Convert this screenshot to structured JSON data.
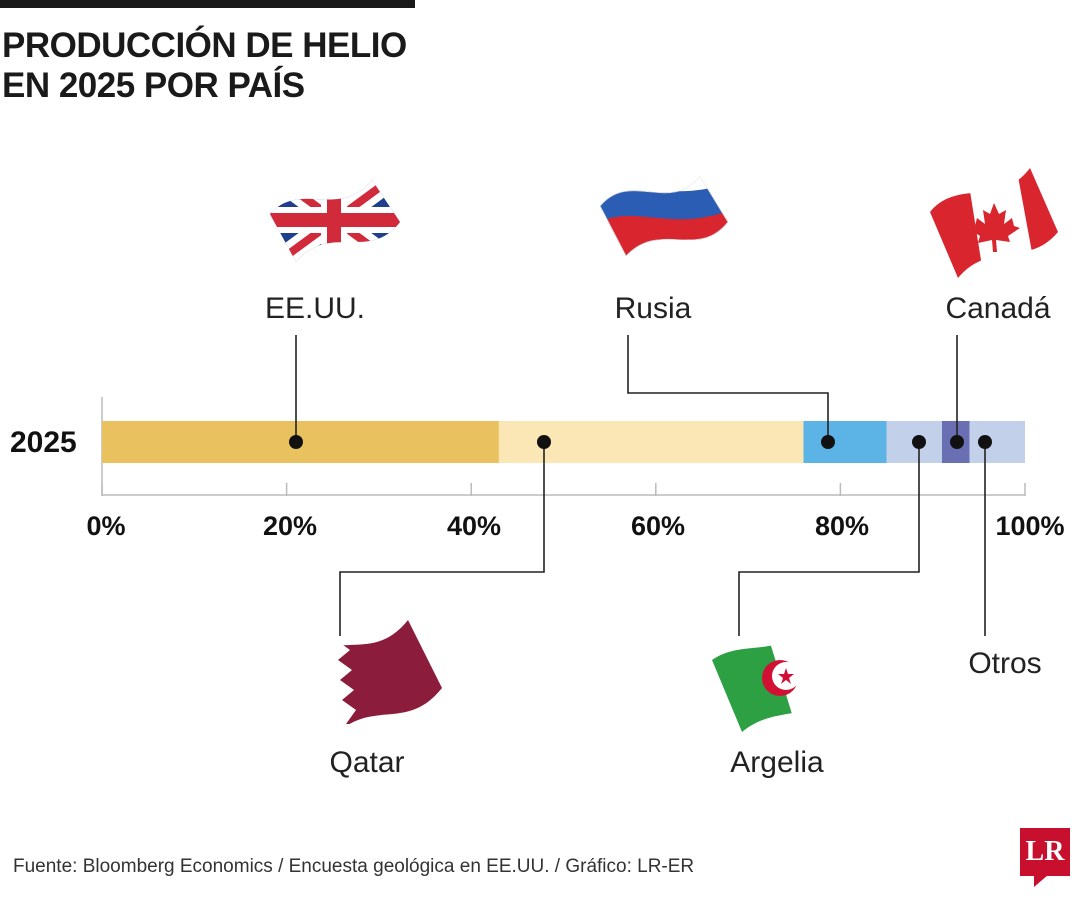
{
  "header": {
    "title_line1": "PRODUCCIÓN DE HELIO",
    "title_line2": "EN 2025 POR PAÍS"
  },
  "chart_data": {
    "type": "bar",
    "orientation": "horizontal-stacked-100",
    "title": "PRODUCCIÓN DE HELIO EN 2025 POR PAÍS",
    "categories": [
      "2025"
    ],
    "xlim": [
      0,
      100
    ],
    "xticks": [
      0,
      20,
      40,
      60,
      80,
      100
    ],
    "tick_labels": [
      "0%",
      "20%",
      "40%",
      "60%",
      "80%",
      "100%"
    ],
    "series": [
      {
        "name": "EE.UU.",
        "values": [
          43
        ],
        "color": "#e9c15f"
      },
      {
        "name": "Qatar",
        "values": [
          33
        ],
        "color": "#fbe6b6"
      },
      {
        "name": "Rusia",
        "values": [
          9
        ],
        "color": "#5cb4e6"
      },
      {
        "name": "Argelia",
        "values": [
          6
        ],
        "color": "#c3d0ea"
      },
      {
        "name": "Canadá",
        "values": [
          3
        ],
        "color": "#6a6fb4"
      },
      {
        "name": "Otros",
        "values": [
          6
        ],
        "color": "#c3d0ea"
      }
    ]
  },
  "icons": {
    "EE.UU.": "usa-flag-icon",
    "Rusia": "russia-flag-icon",
    "Canadá": "canada-flag-icon",
    "Qatar": "qatar-flag-icon",
    "Argelia": "algeria-flag-icon"
  },
  "footer": {
    "source": "Fuente: Bloomberg Economics / Encuesta geológica en EE.UU. / Gráfico: LR-ER",
    "logo_text": "LR"
  }
}
